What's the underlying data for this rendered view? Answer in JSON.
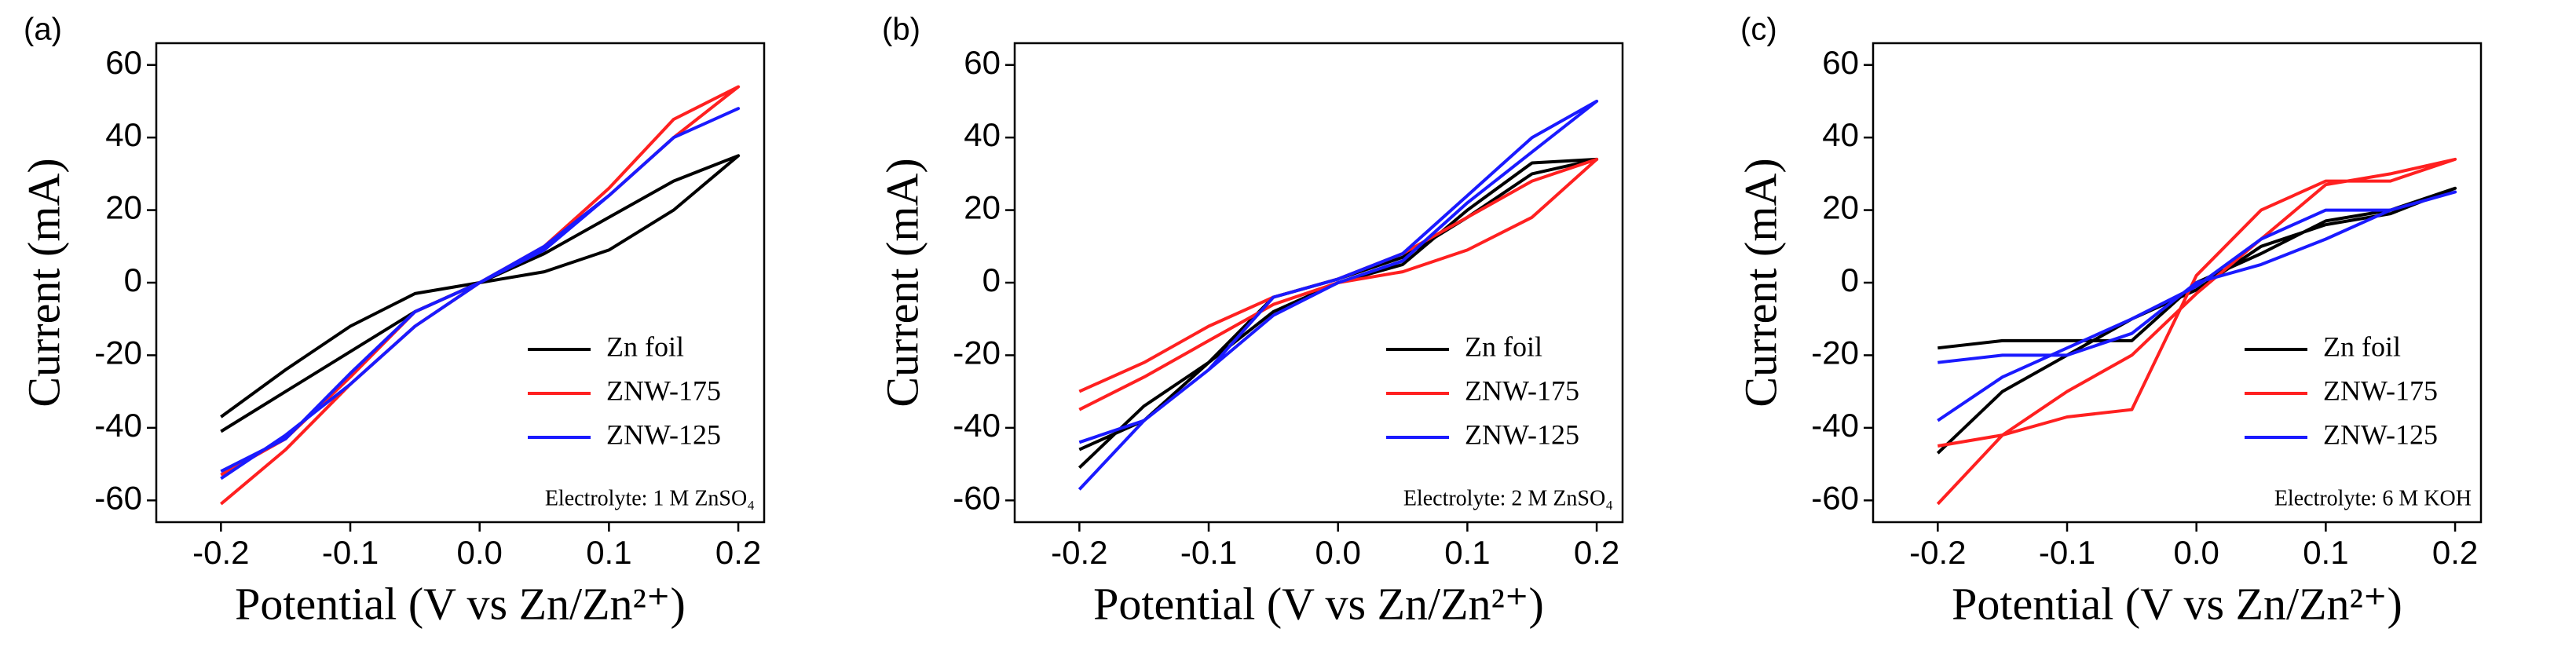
{
  "chart_data": [
    {
      "type": "line",
      "panel_label": "(a)",
      "x_label": "Potential (V vs Zn/Zn²⁺)",
      "y_label": "Current (mA)",
      "annotation": "Electrolyte: 1 M ZnSO₄",
      "x": [
        -0.2,
        -0.15,
        -0.1,
        -0.05,
        0,
        0.05,
        0.1,
        0.15,
        0.2,
        0.15,
        0.1,
        0.05,
        0,
        -0.05,
        -0.1,
        -0.15,
        -0.2
      ],
      "xlim": [
        -0.25,
        0.22
      ],
      "ylim": [
        -66,
        66
      ],
      "xticks": [
        -0.2,
        -0.1,
        {
          "value": 0,
          "label": "0.0"
        },
        0.1,
        0.2
      ],
      "yticks": [
        -60,
        -40,
        -20,
        0,
        20,
        40,
        60
      ],
      "series": [
        {
          "name": "Zn foil",
          "color": "#000000",
          "values": [
            -41,
            -30,
            -19,
            -8,
            0,
            3,
            9,
            20,
            35,
            28,
            18,
            8,
            0,
            -3,
            -12,
            -24,
            -37
          ]
        },
        {
          "name": "ZNW-175",
          "color": "#ff2020",
          "values": [
            -61,
            -46,
            -28,
            -12,
            0,
            10,
            24,
            40,
            54,
            45,
            26,
            10,
            0,
            -8,
            -26,
            -43,
            -53
          ]
        },
        {
          "name": "ZNW-125",
          "color": "#1a1aff",
          "values": [
            -54,
            -42,
            -28,
            -12,
            0,
            10,
            24,
            40,
            48,
            40,
            24,
            9,
            0,
            -8,
            -25,
            -43,
            -52
          ]
        }
      ]
    },
    {
      "type": "line",
      "panel_label": "(b)",
      "x_label": "Potential (V vs Zn/Zn²⁺)",
      "y_label": "Current (mA)",
      "annotation": "Electrolyte: 2 M ZnSO₄",
      "x": [
        -0.2,
        -0.15,
        -0.1,
        -0.05,
        0,
        0.05,
        0.1,
        0.15,
        0.2,
        0.15,
        0.1,
        0.05,
        0,
        -0.05,
        -0.1,
        -0.15,
        -0.2
      ],
      "xlim": [
        -0.25,
        0.22
      ],
      "ylim": [
        -66,
        66
      ],
      "xticks": [
        -0.2,
        -0.1,
        {
          "value": 0,
          "label": "0.0"
        },
        0.1,
        0.2
      ],
      "yticks": [
        -60,
        -40,
        -20,
        0,
        20,
        40,
        60
      ],
      "series": [
        {
          "name": "Zn foil",
          "color": "#000000",
          "values": [
            -51,
            -34,
            -22,
            -8,
            0,
            5,
            20,
            33,
            34,
            30,
            18,
            7,
            1,
            -4,
            -22,
            -38,
            -46
          ]
        },
        {
          "name": "ZNW-175",
          "color": "#ff2020",
          "values": [
            -35,
            -26,
            -16,
            -6,
            0,
            3,
            9,
            18,
            34,
            28,
            18,
            8,
            1,
            -4,
            -12,
            -22,
            -30
          ]
        },
        {
          "name": "ZNW-125",
          "color": "#1a1aff",
          "values": [
            -57,
            -38,
            -24,
            -9,
            0,
            6,
            22,
            36,
            50,
            40,
            24,
            8,
            1,
            -4,
            -24,
            -38,
            -44
          ]
        }
      ]
    },
    {
      "type": "line",
      "panel_label": "(c)",
      "x_label": "Potential (V vs Zn/Zn²⁺)",
      "y_label": "Current (mA)",
      "annotation": "Electrolyte: 6 M KOH",
      "x": [
        -0.2,
        -0.15,
        -0.1,
        -0.05,
        0,
        0.05,
        0.1,
        0.15,
        0.2,
        0.15,
        0.1,
        0.05,
        0,
        -0.05,
        -0.1,
        -0.15,
        -0.2
      ],
      "xlim": [
        -0.25,
        0.22
      ],
      "ylim": [
        -66,
        66
      ],
      "xticks": [
        -0.2,
        -0.1,
        {
          "value": 0,
          "label": "0.0"
        },
        0.1,
        0.2
      ],
      "yticks": [
        -60,
        -40,
        -20,
        0,
        20,
        40,
        60
      ],
      "series": [
        {
          "name": "Zn foil",
          "color": "#000000",
          "values": [
            -47,
            -30,
            -20,
            -10,
            -2,
            10,
            16,
            19,
            26,
            20,
            17,
            8,
            0,
            -16,
            -16,
            -16,
            -18
          ]
        },
        {
          "name": "ZNW-175",
          "color": "#ff2020",
          "values": [
            -61,
            -42,
            -30,
            -20,
            -3,
            12,
            27,
            30,
            34,
            28,
            28,
            20,
            2,
            -35,
            -37,
            -42,
            -45
          ]
        },
        {
          "name": "ZNW-125",
          "color": "#1a1aff",
          "values": [
            -38,
            -26,
            -18,
            -10,
            -1,
            12,
            20,
            20,
            25,
            20,
            12,
            5,
            0,
            -14,
            -20,
            -20,
            -22
          ]
        }
      ]
    }
  ]
}
